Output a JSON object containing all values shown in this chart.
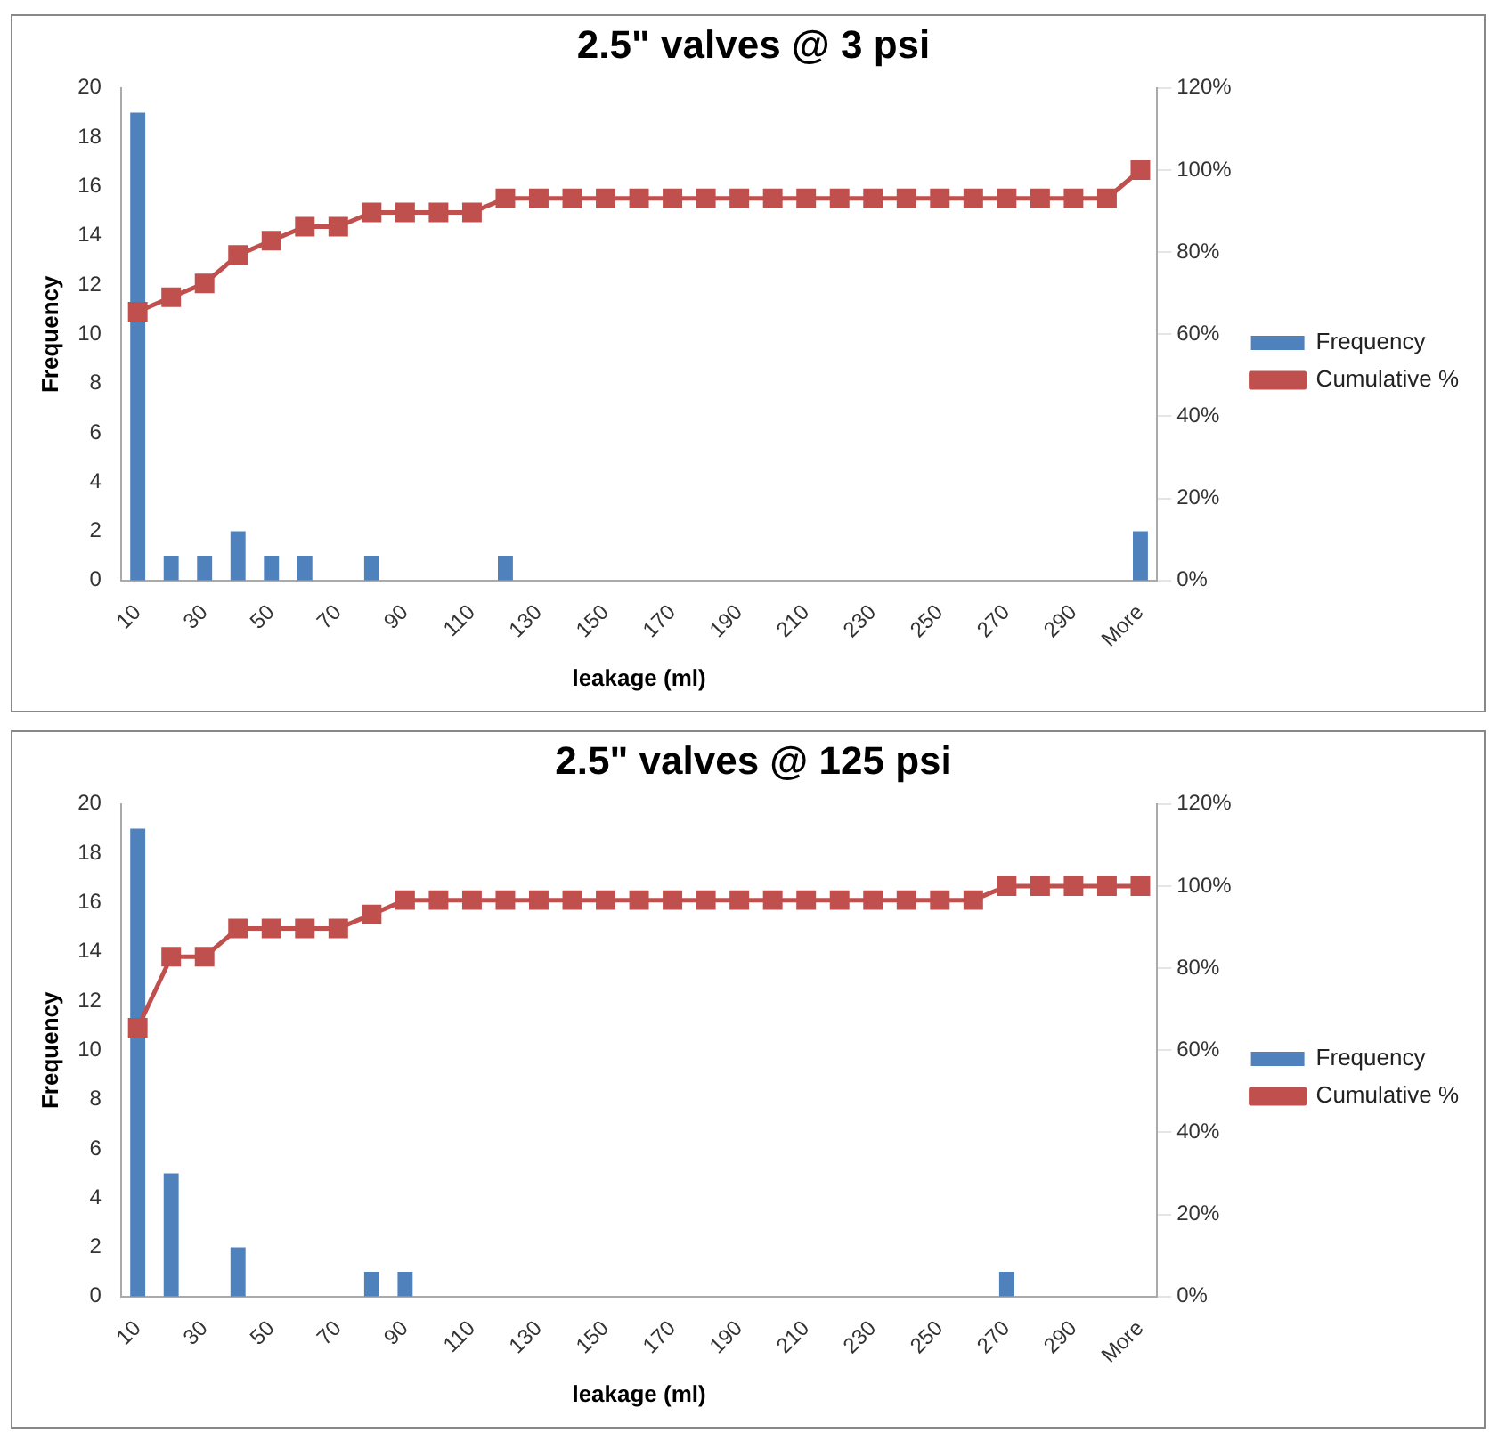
{
  "chart_data": [
    {
      "type": "bar",
      "title": "2.5\" valves @ 3 psi",
      "xlabel": "leakage (ml)",
      "ylabel": "Frequency",
      "categories": [
        "10",
        null,
        "30",
        null,
        "50",
        null,
        "70",
        null,
        "90",
        null,
        "110",
        null,
        "130",
        null,
        "150",
        null,
        "170",
        null,
        "190",
        null,
        "210",
        null,
        "230",
        null,
        "250",
        null,
        "270",
        null,
        "290",
        null,
        "More"
      ],
      "series": [
        {
          "name": "Frequency",
          "color": "#4f81bd",
          "values": [
            19,
            1,
            1,
            2,
            1,
            1,
            0,
            1,
            0,
            0,
            0,
            1,
            0,
            0,
            0,
            0,
            0,
            0,
            0,
            0,
            0,
            0,
            0,
            0,
            0,
            0,
            0,
            0,
            0,
            0,
            2
          ]
        },
        {
          "name": "Cumulative %",
          "type": "line",
          "axis": "y2",
          "color": "#c0504d",
          "values": [
            65.5,
            69,
            72.4,
            79.3,
            82.8,
            86.2,
            86.2,
            89.7,
            89.7,
            89.7,
            89.7,
            93.1,
            93.1,
            93.1,
            93.1,
            93.1,
            93.1,
            93.1,
            93.1,
            93.1,
            93.1,
            93.1,
            93.1,
            93.1,
            93.1,
            93.1,
            93.1,
            93.1,
            93.1,
            93.1,
            100
          ]
        }
      ],
      "ylim": [
        0,
        20
      ],
      "yticks": [
        0,
        2,
        4,
        6,
        8,
        10,
        12,
        14,
        16,
        18,
        20
      ],
      "y2lim": [
        0,
        120
      ],
      "y2ticks": [
        {
          "value": 0,
          "label": "0%"
        },
        {
          "value": 20,
          "label": "20%"
        },
        {
          "value": 40,
          "label": "40%"
        },
        {
          "value": 60,
          "label": "60%"
        },
        {
          "value": 80,
          "label": "80%"
        },
        {
          "value": 100,
          "label": "100%"
        },
        {
          "value": 120,
          "label": "120%"
        }
      ],
      "grid": false,
      "legend": "right",
      "marker": "square"
    },
    {
      "type": "bar",
      "title": "2.5\" valves @ 125 psi",
      "xlabel": "leakage (ml)",
      "ylabel": "Frequency",
      "categories": [
        "10",
        null,
        "30",
        null,
        "50",
        null,
        "70",
        null,
        "90",
        null,
        "110",
        null,
        "130",
        null,
        "150",
        null,
        "170",
        null,
        "190",
        null,
        "210",
        null,
        "230",
        null,
        "250",
        null,
        "270",
        null,
        "290",
        null,
        "More"
      ],
      "series": [
        {
          "name": "Frequency",
          "color": "#4f81bd",
          "values": [
            19,
            5,
            0,
            2,
            0,
            0,
            0,
            1,
            1,
            0,
            0,
            0,
            0,
            0,
            0,
            0,
            0,
            0,
            0,
            0,
            0,
            0,
            0,
            0,
            0,
            0,
            1,
            0,
            0,
            0,
            0
          ]
        },
        {
          "name": "Cumulative %",
          "type": "line",
          "axis": "y2",
          "color": "#c0504d",
          "values": [
            65.5,
            82.8,
            82.8,
            89.7,
            89.7,
            89.7,
            89.7,
            93.1,
            96.6,
            96.6,
            96.6,
            96.6,
            96.6,
            96.6,
            96.6,
            96.6,
            96.6,
            96.6,
            96.6,
            96.6,
            96.6,
            96.6,
            96.6,
            96.6,
            96.6,
            96.6,
            100,
            100,
            100,
            100,
            100
          ]
        }
      ],
      "ylim": [
        0,
        20
      ],
      "yticks": [
        0,
        2,
        4,
        6,
        8,
        10,
        12,
        14,
        16,
        18,
        20
      ],
      "y2lim": [
        0,
        120
      ],
      "y2ticks": [
        {
          "value": 0,
          "label": "0%"
        },
        {
          "value": 20,
          "label": "20%"
        },
        {
          "value": 40,
          "label": "40%"
        },
        {
          "value": 60,
          "label": "60%"
        },
        {
          "value": 80,
          "label": "80%"
        },
        {
          "value": 100,
          "label": "100%"
        },
        {
          "value": 120,
          "label": "120%"
        }
      ],
      "grid": false,
      "legend": "right",
      "marker": "square"
    }
  ]
}
